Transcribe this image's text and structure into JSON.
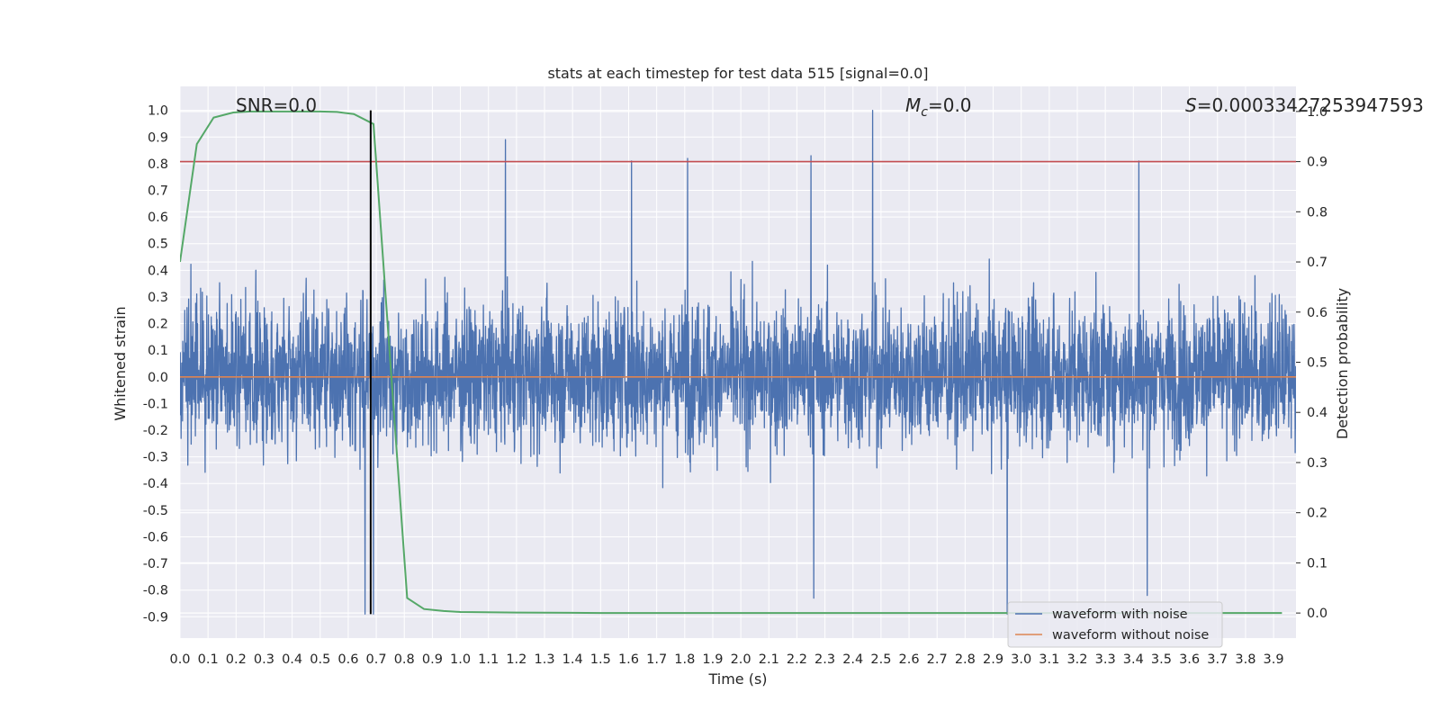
{
  "chart_data": {
    "type": "line",
    "title": "stats at each timestep for test data 515 [signal=0.0]",
    "xlabel": "Time (s)",
    "ylabel": "Whitened strain",
    "y2label": "Detection probability",
    "xlim": [
      0.0,
      3.98
    ],
    "ylim": [
      -0.98,
      1.09
    ],
    "y2lim": [
      -0.05,
      1.05
    ],
    "grid": true,
    "x_ticks": [
      "0.0",
      "0.1",
      "0.2",
      "0.3",
      "0.4",
      "0.5",
      "0.6",
      "0.7",
      "0.8",
      "0.9",
      "1.0",
      "1.1",
      "1.2",
      "1.3",
      "1.4",
      "1.5",
      "1.6",
      "1.7",
      "1.8",
      "1.9",
      "2.0",
      "2.1",
      "2.2",
      "2.3",
      "2.4",
      "2.5",
      "2.6",
      "2.7",
      "2.8",
      "2.9",
      "3.0",
      "3.1",
      "3.2",
      "3.3",
      "3.4",
      "3.5",
      "3.6",
      "3.7",
      "3.8",
      "3.9"
    ],
    "y_ticks": [
      "1.0",
      "0.9",
      "0.8",
      "0.7",
      "0.6",
      "0.5",
      "0.4",
      "0.3",
      "0.2",
      "0.1",
      "0.0",
      "-0.1",
      "-0.2",
      "-0.3",
      "-0.4",
      "-0.5",
      "-0.6",
      "-0.7",
      "-0.8",
      "-0.9"
    ],
    "y2_ticks": [
      "1.0",
      "0.9",
      "0.8",
      "0.7",
      "0.6",
      "0.5",
      "0.4",
      "0.3",
      "0.2",
      "0.1",
      "0.0"
    ],
    "annotations": {
      "snr": "SNR=0.0",
      "mc_symbol": "M",
      "mc_sub": "c",
      "mc_value": "=0.0",
      "s_symbol": "S",
      "s_value": "=0.00033427253947593"
    },
    "series": [
      {
        "name": "waveform with noise",
        "color": "#4c72b0",
        "axis": "left",
        "description": "dense noise, roughly within -0.9..1.0",
        "spikes": [
          {
            "x": 1.16,
            "y": 0.89
          },
          {
            "x": 2.47,
            "y": 1.0
          },
          {
            "x": 2.25,
            "y": 0.83
          },
          {
            "x": 1.81,
            "y": 0.82
          },
          {
            "x": 3.42,
            "y": 0.81
          },
          {
            "x": 1.61,
            "y": 0.81
          },
          {
            "x": 2.95,
            "y": -0.89
          },
          {
            "x": 0.66,
            "y": -0.89
          },
          {
            "x": 0.69,
            "y": -0.89
          },
          {
            "x": 3.45,
            "y": -0.82
          },
          {
            "x": 2.26,
            "y": -0.83
          }
        ]
      },
      {
        "name": "waveform without noise",
        "color": "#dd8452",
        "axis": "left",
        "x": [
          0.0,
          3.98
        ],
        "y": [
          0.0,
          0.0
        ]
      },
      {
        "name": "detection probability",
        "color": "#55a868",
        "axis": "right",
        "x": [
          0.0,
          0.06,
          0.12,
          0.19,
          0.25,
          0.31,
          0.37,
          0.44,
          0.5,
          0.56,
          0.62,
          0.69,
          0.75,
          0.81,
          0.87,
          0.94,
          1.0,
          1.2,
          1.5,
          2.0,
          2.5,
          3.0,
          3.5,
          3.93
        ],
        "y": [
          0.7,
          0.935,
          0.988,
          0.998,
          1.0,
          1.0,
          1.0,
          1.0,
          1.0,
          0.999,
          0.995,
          0.975,
          0.5,
          0.03,
          0.008,
          0.004,
          0.002,
          0.001,
          0.0,
          0.0,
          0.0,
          0.0,
          0.0,
          0.0
        ]
      }
    ],
    "threshold": {
      "axis": "right",
      "value": 0.9,
      "color": "#c44e52"
    },
    "marker": {
      "x": 0.68,
      "y_range": [
        -0.89,
        1.0
      ],
      "color": "#000000"
    },
    "legend": {
      "position": "bottom-right",
      "entries": [
        "waveform with noise",
        "waveform without noise"
      ]
    }
  }
}
